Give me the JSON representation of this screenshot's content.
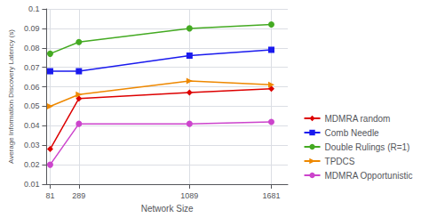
{
  "chart_data": {
    "type": "line",
    "x": [
      81,
      289,
      1089,
      1681
    ],
    "series": [
      {
        "name": "MDMRA random",
        "color": "#dd0000",
        "marker": "diamond",
        "line_style": "solid",
        "values": [
          0.028,
          0.054,
          0.057,
          0.059
        ]
      },
      {
        "name": "Comb Needle",
        "color": "#1a1aee",
        "marker": "square",
        "line_style": "solid",
        "values": [
          0.068,
          0.068,
          0.076,
          0.079
        ]
      },
      {
        "name": "Double Rulings (R=1)",
        "color": "#44aa22",
        "marker": "circle",
        "line_style": "solid",
        "values": [
          0.077,
          0.083,
          0.09,
          0.092
        ]
      },
      {
        "name": "TPDCS",
        "color": "#ee8800",
        "marker": "triangle-right",
        "line_style": "solid",
        "values": [
          0.05,
          0.056,
          0.063,
          0.061
        ]
      },
      {
        "name": "MDMRA Opportunistic",
        "color": "#cc44cc",
        "marker": "circle",
        "line_style": "solid",
        "values": [
          0.02,
          0.041,
          0.041,
          0.042
        ]
      }
    ],
    "xlabel": "Network Size",
    "ylabel": "Average Information Discovery Latency (s)",
    "xlim": [
      55,
      1800
    ],
    "xticks": [
      81,
      289,
      1089,
      1681
    ],
    "ylim": [
      0.01,
      0.1
    ],
    "yticks": [
      0.01,
      0.02,
      0.03,
      0.04,
      0.05,
      0.06,
      0.07,
      0.08,
      0.09,
      0.1
    ],
    "grid": true,
    "legend": "lower right"
  }
}
